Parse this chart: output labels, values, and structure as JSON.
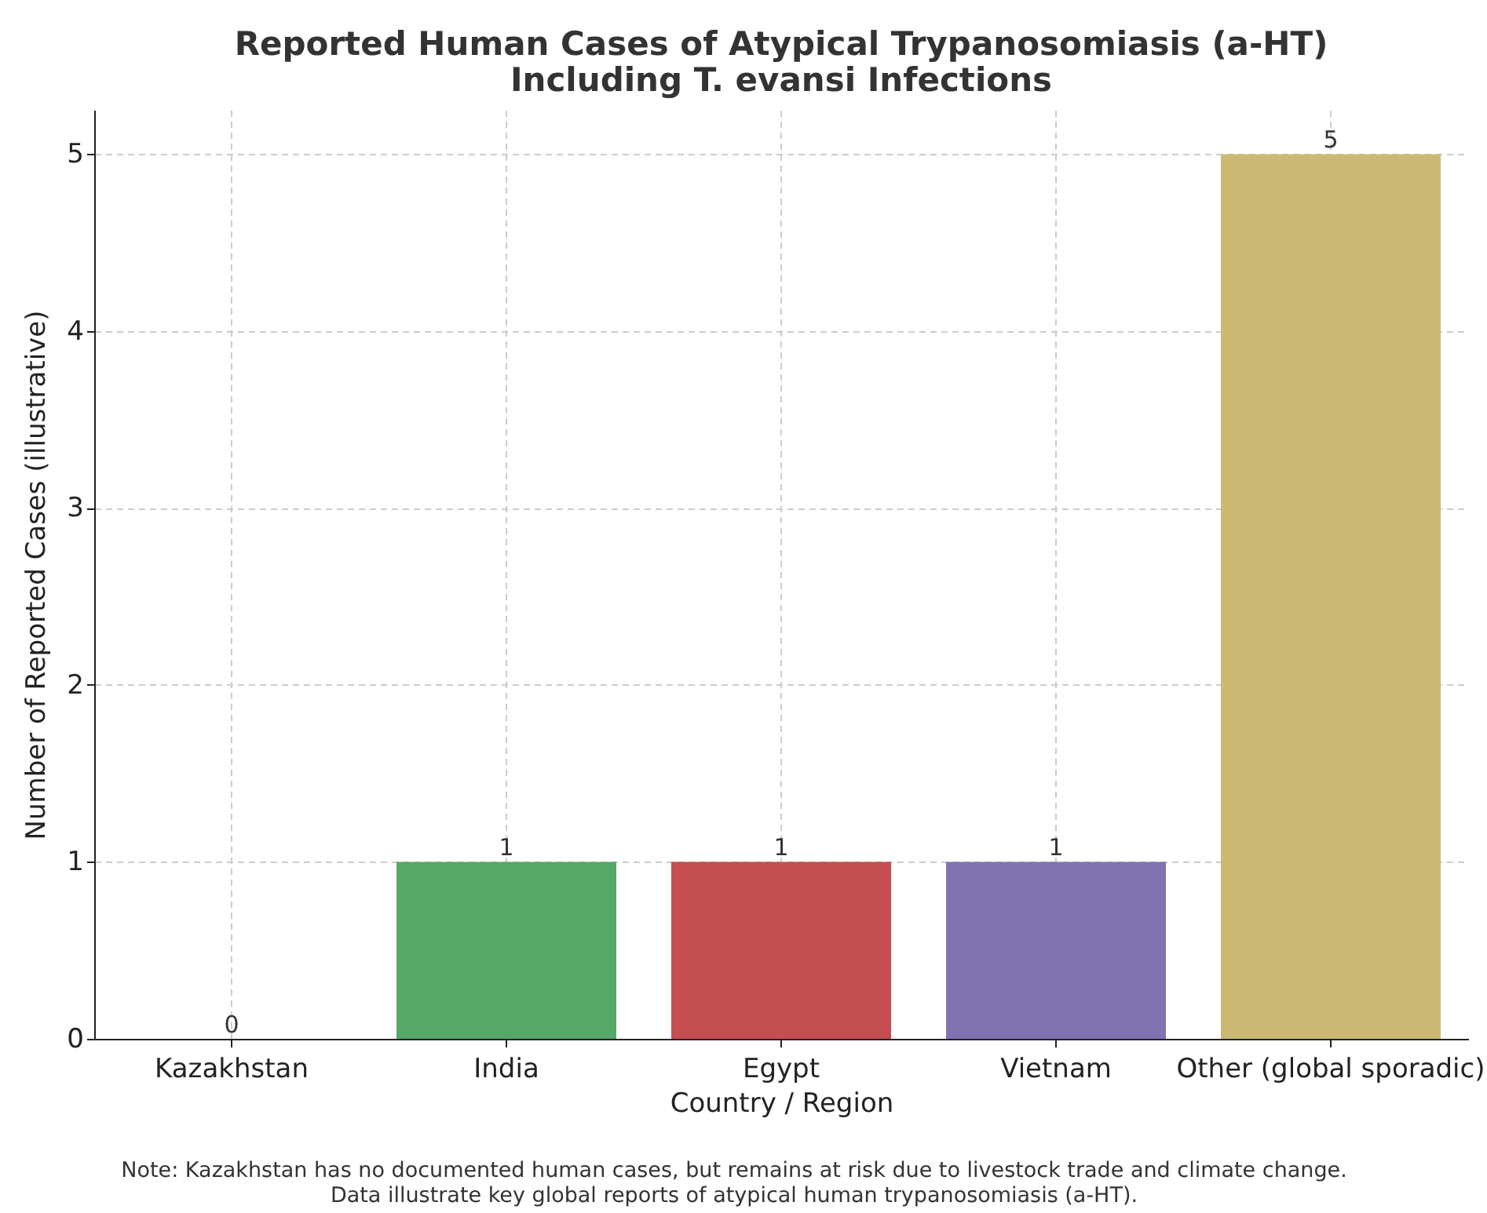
{
  "chart_data": {
    "type": "bar",
    "title": [
      "Reported Human Cases of Atypical Trypanosomiasis (a-HT)",
      "Including T. evansi Infections"
    ],
    "xlabel": "Country / Region",
    "ylabel": "Number of Reported Cases (illustrative)",
    "categories": [
      "Kazakhstan",
      "India",
      "Egypt",
      "Vietnam",
      "Other (global sporadic)"
    ],
    "values": [
      0,
      1,
      1,
      1,
      5
    ],
    "colors": [
      "#4c72b0",
      "#55a868",
      "#c44e52",
      "#8172b2",
      "#ccb974"
    ],
    "ylim": [
      0,
      5.25
    ],
    "yticks": [
      0,
      1,
      2,
      3,
      4,
      5
    ],
    "grid": true,
    "data_labels": true,
    "annotations": [
      "Note: Kazakhstan has no documented human cases, but remains at risk due to livestock trade and climate change.",
      "Data illustrate key global reports of atypical human trypanosomiasis (a-HT)."
    ]
  }
}
